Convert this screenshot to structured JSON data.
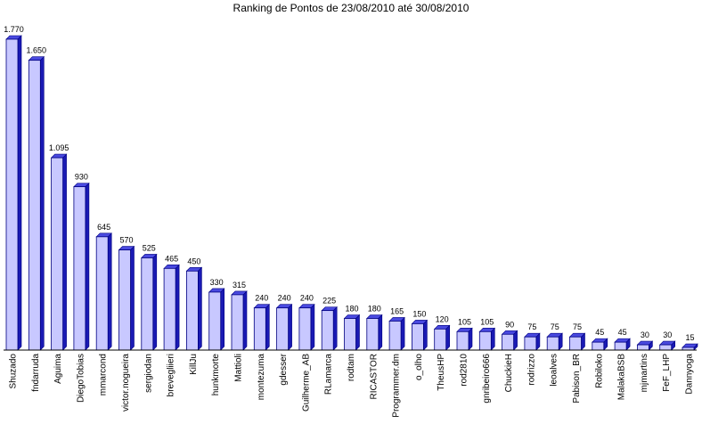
{
  "chart_data": {
    "type": "bar",
    "title": "Ranking de Pontos de 23/08/2010 até 30/08/2010",
    "xlabel": "",
    "ylabel": "",
    "ylim": [
      0,
      1770
    ],
    "grid": false,
    "legend": "none",
    "categories": [
      "Shuzado",
      "fndarruda",
      "Aguima",
      "DiegoTobias",
      "mmarcond",
      "victor.nogueira",
      "sergiodan",
      "brevegliieri",
      "KillJu",
      "hunkmorte",
      "Mattioli",
      "montezuma",
      "gdesser",
      "Guilherme_AB",
      "RLamarca",
      "rodtam",
      "RICASTOR",
      "Programmer.dm",
      "o_olho",
      "TheusHP",
      "rod2810",
      "gnribeiro666",
      "ChuckieH",
      "rodrizzo",
      "leoalves",
      "Pabison_BR",
      "Robiloko",
      "MalakaBSB",
      "mjmartins",
      "FeF_LHP",
      "Dannyoga"
    ],
    "values": [
      1770,
      1650,
      1095,
      930,
      645,
      570,
      525,
      465,
      450,
      330,
      315,
      240,
      240,
      240,
      225,
      180,
      180,
      165,
      150,
      120,
      105,
      105,
      90,
      75,
      75,
      75,
      45,
      45,
      30,
      30,
      15
    ],
    "value_labels": [
      "1.770",
      "1.650",
      "1.095",
      "930",
      "645",
      "570",
      "525",
      "465",
      "450",
      "330",
      "315",
      "240",
      "240",
      "240",
      "225",
      "180",
      "180",
      "165",
      "150",
      "120",
      "105",
      "105",
      "90",
      "75",
      "75",
      "75",
      "45",
      "45",
      "30",
      "30",
      "15"
    ],
    "colors": {
      "bar_face": "#c8c8ff",
      "bar_side": "#1a1ab4",
      "bar_top": "#4a4ae0",
      "outline": "#000080",
      "axis": "#000000"
    }
  }
}
